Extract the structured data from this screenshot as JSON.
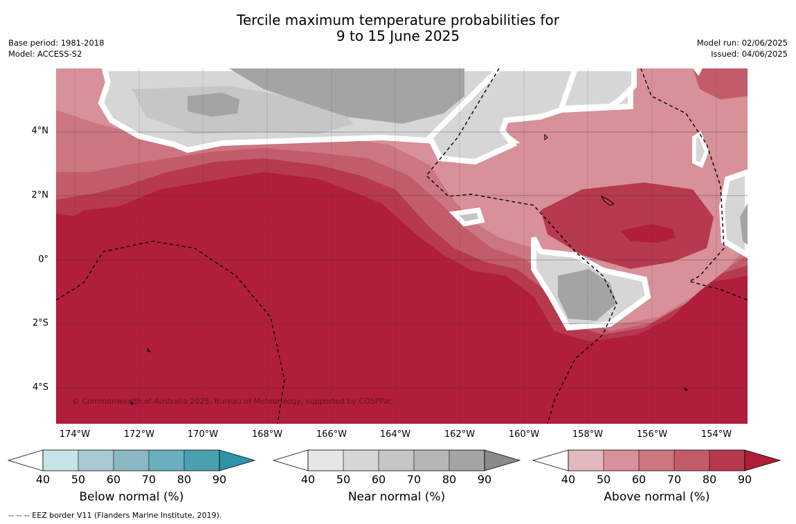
{
  "title": {
    "line1": "Tercile maximum temperature probabilities for",
    "line2": "9 to 15 June 2025"
  },
  "meta_left": {
    "base_period": "Base period: 1981-2018",
    "model": "Model: ACCESS-S2"
  },
  "meta_right": {
    "model_run": "Model run: 02/06/2025",
    "issued": "Issued: 04/06/2025"
  },
  "map": {
    "copyright": "© Commonwealth of Australia 2025, Bureau of Meteorology, supported by COSPPac",
    "lat_labels": [
      "4°N",
      "2°N",
      "0°",
      "2°S",
      "4°S"
    ],
    "lon_labels": [
      "174°W",
      "172°W",
      "170°W",
      "168°W",
      "166°W",
      "164°W",
      "162°W",
      "160°W",
      "158°W",
      "156°W",
      "154°W"
    ],
    "gridlines": true
  },
  "colorbars": [
    {
      "title": "Below normal (%)",
      "ticks": [
        "40",
        "50",
        "60",
        "70",
        "80",
        "90"
      ],
      "colors": [
        "#c8e2ea",
        "#a9c9d1",
        "#8ab7c4",
        "#6baebd",
        "#4aa0b1",
        "#2f94a8"
      ]
    },
    {
      "title": "Near normal (%)",
      "ticks": [
        "40",
        "50",
        "60",
        "70",
        "80",
        "90"
      ],
      "colors": [
        "#e6e6e6",
        "#d6d6d6",
        "#c6c6c6",
        "#b6b6b6",
        "#a4a4a4",
        "#8a8a8a"
      ]
    },
    {
      "title": "Above normal (%)",
      "ticks": [
        "40",
        "50",
        "60",
        "70",
        "80",
        "90"
      ],
      "colors": [
        "#e2b9bf",
        "#d89099",
        "#cc7682",
        "#c35c69",
        "#b7394e",
        "#b01e3a"
      ]
    }
  ],
  "footer": "--  --  -- EEZ border V11 (Flanders Marine Institute, 2019)."
}
